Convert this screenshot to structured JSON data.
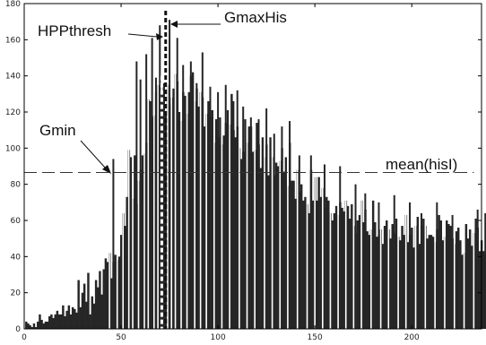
{
  "chart_data": {
    "type": "bar",
    "title": "",
    "xlabel": "",
    "ylabel": "",
    "xlim": [
      0,
      236
    ],
    "ylim": [
      0,
      180
    ],
    "xticks": [
      0,
      50,
      100,
      150,
      200
    ],
    "yticks": [
      0,
      20,
      40,
      60,
      80,
      100,
      120,
      140,
      160,
      180
    ],
    "grid": false,
    "bar_color": "#262626",
    "x_start": 1,
    "values": [
      4,
      3,
      2,
      1,
      3,
      1,
      4,
      8,
      5,
      3,
      4,
      4,
      7,
      8,
      6,
      8,
      10,
      8,
      8,
      13,
      7,
      10,
      13,
      8,
      12,
      11,
      9,
      27,
      12,
      20,
      25,
      15,
      31,
      8,
      18,
      14,
      27,
      23,
      32,
      19,
      33,
      39,
      37,
      42,
      28,
      37,
      41,
      38,
      40,
      52,
      64,
      57,
      73,
      99,
      95,
      72,
      96,
      69,
      82,
      88,
      96,
      97,
      103,
      127,
      126,
      117,
      118,
      131,
      135,
      126,
      132,
      136,
      119,
      135,
      124,
      128,
      133,
      141,
      137,
      120,
      115,
      131,
      129,
      119,
      131,
      140,
      142,
      126,
      133,
      123,
      131,
      128,
      112,
      119,
      126,
      117,
      121,
      103,
      116,
      106,
      117,
      102,
      107,
      114,
      121,
      113,
      130,
      110,
      106,
      112,
      100,
      94,
      98,
      116,
      103,
      112,
      112,
      98,
      99,
      114,
      102,
      89,
      106,
      95,
      102,
      85,
      106,
      95,
      85,
      92,
      90,
      93,
      100,
      87,
      95,
      79,
      103,
      82,
      82,
      72,
      88,
      76,
      80,
      71,
      73,
      69,
      64,
      88,
      71,
      84,
      71,
      84,
      73,
      78,
      67,
      73,
      71,
      64,
      60,
      64,
      68,
      63,
      70,
      67,
      65,
      71,
      68,
      61,
      69,
      57,
      53,
      60,
      63,
      71,
      59,
      66,
      54,
      52,
      55,
      71,
      59,
      51,
      52,
      55,
      47,
      57,
      60,
      55,
      50,
      58,
      53,
      61,
      51,
      49,
      57,
      52,
      63,
      48,
      52,
      56,
      45,
      57,
      62,
      47,
      57,
      61,
      57,
      50,
      52,
      52,
      51,
      48,
      55,
      63,
      60,
      49,
      51,
      60,
      58,
      57,
      50,
      47,
      54,
      56,
      49,
      41,
      42,
      58,
      50,
      55,
      46,
      53,
      61,
      56,
      43,
      49,
      43,
      64,
      56,
      65
    ],
    "spikes": [
      {
        "x": 46,
        "value": 94
      },
      {
        "x": 58,
        "value": 148
      },
      {
        "x": 60,
        "value": 138
      },
      {
        "x": 63,
        "value": 152
      },
      {
        "x": 66,
        "value": 161
      },
      {
        "x": 68,
        "value": 139
      },
      {
        "x": 70,
        "value": 168
      },
      {
        "x": 75,
        "value": 171
      },
      {
        "x": 79,
        "value": 161
      },
      {
        "x": 82,
        "value": 146
      },
      {
        "x": 86,
        "value": 148
      },
      {
        "x": 89,
        "value": 136
      },
      {
        "x": 92,
        "value": 153
      },
      {
        "x": 96,
        "value": 134
      },
      {
        "x": 100,
        "value": 131
      },
      {
        "x": 104,
        "value": 135
      },
      {
        "x": 108,
        "value": 126
      },
      {
        "x": 110,
        "value": 132
      },
      {
        "x": 113,
        "value": 123
      },
      {
        "x": 117,
        "value": 117
      },
      {
        "x": 121,
        "value": 116
      },
      {
        "x": 125,
        "value": 122
      },
      {
        "x": 129,
        "value": 108
      },
      {
        "x": 133,
        "value": 112
      },
      {
        "x": 137,
        "value": 115
      },
      {
        "x": 142,
        "value": 96
      },
      {
        "x": 148,
        "value": 96
      },
      {
        "x": 155,
        "value": 91
      },
      {
        "x": 163,
        "value": 90
      },
      {
        "x": 171,
        "value": 80
      },
      {
        "x": 176,
        "value": 75
      },
      {
        "x": 183,
        "value": 70
      },
      {
        "x": 191,
        "value": 74
      },
      {
        "x": 199,
        "value": 70
      },
      {
        "x": 205,
        "value": 64
      },
      {
        "x": 213,
        "value": 70
      },
      {
        "x": 221,
        "value": 63
      },
      {
        "x": 234,
        "value": 66
      }
    ],
    "gaps": [
      44,
      48,
      51,
      54,
      56,
      59,
      62,
      64,
      67,
      69,
      74,
      76,
      78,
      81,
      84,
      88,
      91,
      94,
      98,
      102,
      106,
      111,
      115,
      119,
      124,
      128,
      132,
      136,
      141,
      146,
      150,
      154,
      158,
      162,
      166,
      170,
      174,
      179,
      184,
      188,
      193,
      197,
      202,
      207,
      212,
      217,
      222,
      227,
      232
    ],
    "mean_line": {
      "value": 86.5,
      "label": "mean(hisI)"
    },
    "hpp_thresh": {
      "x": 71,
      "label": "HPPthresh"
    },
    "gmax_line": {
      "x": 73,
      "label": "GmaxHis"
    },
    "gmin": {
      "label": "Gmin"
    }
  }
}
